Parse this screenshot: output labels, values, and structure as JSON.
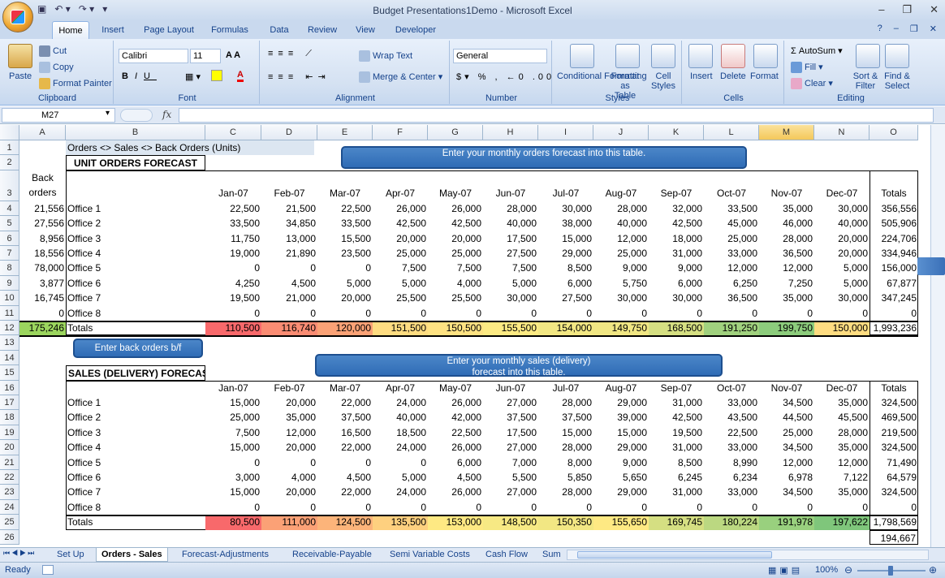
{
  "app": {
    "title": "Budget Presentations1Demo - Microsoft Excel"
  },
  "tabs": [
    "Home",
    "Insert",
    "Page Layout",
    "Formulas",
    "Data",
    "Review",
    "View",
    "Developer"
  ],
  "ribbon": {
    "clipboard": {
      "paste": "Paste",
      "cut": "Cut",
      "copy": "Copy",
      "format_painter": "Format Painter",
      "label": "Clipboard"
    },
    "font": {
      "name": "Calibri",
      "size": "11",
      "label": "Font"
    },
    "alignment": {
      "wrap": "Wrap Text",
      "merge": "Merge & Center",
      "label": "Alignment"
    },
    "number": {
      "format": "General",
      "label": "Number"
    },
    "styles": {
      "conditional": "Conditional Formatting",
      "table": "Format as Table",
      "cell": "Cell Styles",
      "label": "Styles"
    },
    "cells": {
      "insert": "Insert",
      "delete": "Delete",
      "format": "Format",
      "label": "Cells"
    },
    "editing": {
      "autosum": "AutoSum",
      "fill": "Fill",
      "clear": "Clear",
      "sort": "Sort & Filter",
      "find": "Find & Select",
      "label": "Editing"
    }
  },
  "formula_bar": {
    "name_box": "M27",
    "fx": "fx",
    "value": ""
  },
  "columns": [
    "A",
    "B",
    "C",
    "D",
    "E",
    "F",
    "G",
    "H",
    "I",
    "J",
    "K",
    "L",
    "M",
    "N",
    "O"
  ],
  "rows": [
    "1",
    "2",
    "3",
    "4",
    "5",
    "6",
    "7",
    "8",
    "9",
    "10",
    "11",
    "12",
    "13",
    "14",
    "15",
    "16",
    "17",
    "18",
    "19",
    "20",
    "21",
    "22",
    "23",
    "24",
    "25",
    "26"
  ],
  "sheet": {
    "title1": "Orders <> Sales <> Back Orders (Units)",
    "orders_title": "UNIT ORDERS FORECAST",
    "sales_title": "SALES (DELIVERY) FORECAST",
    "back_orders_header": "Back orders",
    "months": [
      "Jan-07",
      "Feb-07",
      "Mar-07",
      "Apr-07",
      "May-07",
      "Jun-07",
      "Jul-07",
      "Aug-07",
      "Sep-07",
      "Oct-07",
      "Nov-07",
      "Dec-07"
    ],
    "totals_header": "Totals",
    "callout_orders": "Enter your monthly  orders forecast into this table.",
    "callout_back": "Enter back orders b/f",
    "callout_sales": "Enter your monthly sales (delivery) forecast into this table.",
    "orders": [
      {
        "back": "21,556",
        "office": "Office 1",
        "vals": [
          "22,500",
          "21,500",
          "22,500",
          "26,000",
          "26,000",
          "28,000",
          "30,000",
          "28,000",
          "32,000",
          "33,500",
          "35,000",
          "30,000"
        ],
        "total": "356,556"
      },
      {
        "back": "27,556",
        "office": "Office 2",
        "vals": [
          "33,500",
          "34,850",
          "33,500",
          "42,500",
          "42,500",
          "40,000",
          "38,000",
          "40,000",
          "42,500",
          "45,000",
          "46,000",
          "40,000"
        ],
        "total": "505,906"
      },
      {
        "back": "8,956",
        "office": "Office 3",
        "vals": [
          "11,750",
          "13,000",
          "15,500",
          "20,000",
          "20,000",
          "17,500",
          "15,000",
          "12,000",
          "18,000",
          "25,000",
          "28,000",
          "20,000"
        ],
        "total": "224,706"
      },
      {
        "back": "18,556",
        "office": "Office 4",
        "vals": [
          "19,000",
          "21,890",
          "23,500",
          "25,000",
          "25,000",
          "27,500",
          "29,000",
          "25,000",
          "31,000",
          "33,000",
          "36,500",
          "20,000"
        ],
        "total": "334,946"
      },
      {
        "back": "78,000",
        "office": "Office 5",
        "vals": [
          "0",
          "0",
          "0",
          "7,500",
          "7,500",
          "7,500",
          "8,500",
          "9,000",
          "9,000",
          "12,000",
          "12,000",
          "5,000"
        ],
        "total": "156,000"
      },
      {
        "back": "3,877",
        "office": "Office 6",
        "vals": [
          "4,250",
          "4,500",
          "5,000",
          "5,000",
          "4,000",
          "5,000",
          "6,000",
          "5,750",
          "6,000",
          "6,250",
          "7,250",
          "5,000"
        ],
        "total": "67,877"
      },
      {
        "back": "16,745",
        "office": "Office 7",
        "vals": [
          "19,500",
          "21,000",
          "20,000",
          "25,500",
          "25,500",
          "30,000",
          "27,500",
          "30,000",
          "30,000",
          "36,500",
          "35,000",
          "30,000"
        ],
        "total": "347,245"
      },
      {
        "back": "0",
        "office": "Office 8",
        "vals": [
          "0",
          "0",
          "0",
          "0",
          "0",
          "0",
          "0",
          "0",
          "0",
          "0",
          "0",
          "0"
        ],
        "total": "0"
      }
    ],
    "orders_total": {
      "back": "175,246",
      "label": "Totals",
      "vals": [
        "110,500",
        "116,740",
        "120,000",
        "151,500",
        "150,500",
        "155,500",
        "154,000",
        "149,750",
        "168,500",
        "191,250",
        "199,750",
        "150,000"
      ],
      "total": "1,993,236"
    },
    "sales": [
      {
        "office": "Office 1",
        "vals": [
          "15,000",
          "20,000",
          "22,000",
          "24,000",
          "26,000",
          "27,000",
          "28,000",
          "29,000",
          "31,000",
          "33,000",
          "34,500",
          "35,000"
        ],
        "total": "324,500"
      },
      {
        "office": "Office 2",
        "vals": [
          "25,000",
          "35,000",
          "37,500",
          "40,000",
          "42,000",
          "37,500",
          "37,500",
          "39,000",
          "42,500",
          "43,500",
          "44,500",
          "45,500"
        ],
        "total": "469,500"
      },
      {
        "office": "Office 3",
        "vals": [
          "7,500",
          "12,000",
          "16,500",
          "18,500",
          "22,500",
          "17,500",
          "15,000",
          "15,000",
          "19,500",
          "22,500",
          "25,000",
          "28,000"
        ],
        "total": "219,500"
      },
      {
        "office": "Office 4",
        "vals": [
          "15,000",
          "20,000",
          "22,000",
          "24,000",
          "26,000",
          "27,000",
          "28,000",
          "29,000",
          "31,000",
          "33,000",
          "34,500",
          "35,000"
        ],
        "total": "324,500"
      },
      {
        "office": "Office 5",
        "vals": [
          "0",
          "0",
          "0",
          "0",
          "6,000",
          "7,000",
          "8,000",
          "9,000",
          "8,500",
          "8,990",
          "12,000",
          "12,000"
        ],
        "total": "71,490"
      },
      {
        "office": "Office 6",
        "vals": [
          "3,000",
          "4,000",
          "4,500",
          "5,000",
          "4,500",
          "5,500",
          "5,850",
          "5,650",
          "6,245",
          "6,234",
          "6,978",
          "7,122"
        ],
        "total": "64,579"
      },
      {
        "office": "Office 7",
        "vals": [
          "15,000",
          "20,000",
          "22,000",
          "24,000",
          "26,000",
          "27,000",
          "28,000",
          "29,000",
          "31,000",
          "33,000",
          "34,500",
          "35,000"
        ],
        "total": "324,500"
      },
      {
        "office": "Office 8",
        "vals": [
          "0",
          "0",
          "0",
          "0",
          "0",
          "0",
          "0",
          "0",
          "0",
          "0",
          "0",
          "0"
        ],
        "total": "0"
      }
    ],
    "sales_total": {
      "label": "Totals",
      "vals": [
        "80,500",
        "111,000",
        "124,500",
        "135,500",
        "153,000",
        "148,500",
        "150,350",
        "155,650",
        "169,745",
        "180,224",
        "191,978",
        "197,622"
      ],
      "total": "1,798,569"
    },
    "row26_total": "194,667"
  },
  "total_colors": [
    "#f8696b",
    "#fa8c73",
    "#fba276",
    "#fedc81",
    "#fee282",
    "#fcea83",
    "#f2e783",
    "#f0e683",
    "#d5df82",
    "#a0d17e",
    "#8ccc7c",
    "#fedc81"
  ],
  "sales_total_colors": [
    "#f8696b",
    "#fba176",
    "#fcb47a",
    "#fed07f",
    "#fee983",
    "#f7e984",
    "#f2e783",
    "#fee983",
    "#d5df82",
    "#bbd881",
    "#99d07e",
    "#7fc67b"
  ],
  "sheet_tabs": [
    "Set Up",
    "Orders - Sales",
    "Forecast-Adjustments",
    "Receivable-Payable",
    "Semi Variable Costs",
    "Cash Flow",
    "Sum"
  ],
  "status": {
    "ready": "Ready",
    "zoom": "100%"
  }
}
